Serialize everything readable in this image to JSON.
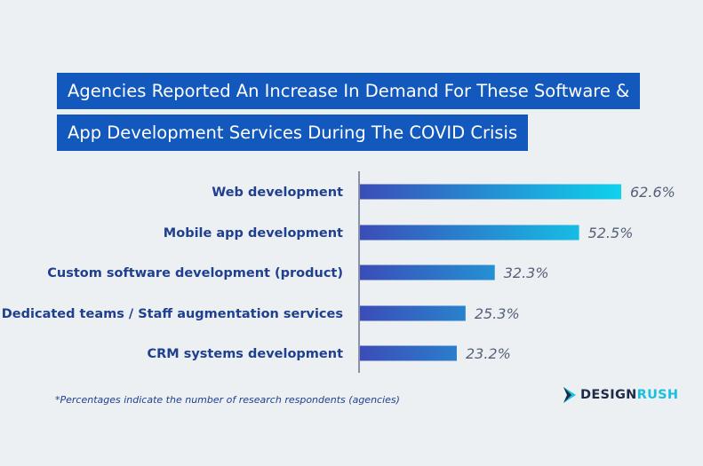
{
  "title": {
    "line1": "Agencies Reported An Increase In Demand For These Software &",
    "line2": "App Development Services During The COVID Crisis"
  },
  "chart_data": {
    "type": "bar",
    "orientation": "horizontal",
    "categories": [
      "Web development",
      "Mobile app development",
      "Custom software development (product)",
      "Dedicated teams / Staff augmentation services",
      "CRM systems development"
    ],
    "values": [
      62.6,
      52.5,
      32.3,
      25.3,
      23.2
    ],
    "value_labels": [
      "62.6%",
      "52.5%",
      "32.3%",
      "25.3%",
      "23.2%"
    ],
    "unit": "%",
    "xlim": [
      0,
      62.6
    ],
    "grid": false,
    "legend": "none",
    "colors": {
      "bar_start": "#3b4cb8",
      "bar_end": "#0fd2ec",
      "axis": "#6a7390"
    }
  },
  "footnote": "*Percentages indicate the number of research respondents (agencies)",
  "brand": {
    "part1": "DESIGN",
    "part2": "RUSH"
  }
}
